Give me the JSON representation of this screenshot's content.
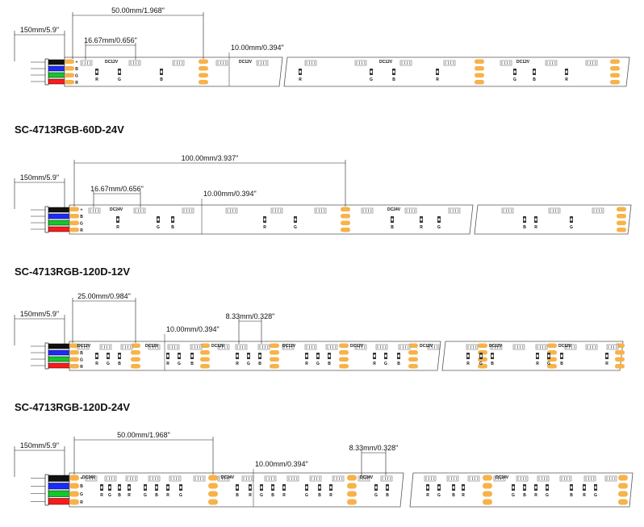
{
  "colors": {
    "pad": "#f7b24a",
    "wire_black": "#111111",
    "wire_blue": "#1a2bff",
    "wire_green": "#12c82a",
    "wire_red": "#ff1a1a",
    "led_frame": "#888888",
    "pcb_outline": "#555555"
  },
  "strips": [
    {
      "id": "strip1",
      "title": "",
      "dims": {
        "lead": "150mm/5.9\"",
        "cut_long": "50.00mm/1.968\"",
        "led_pitch": "16.67mm/0.656\"",
        "width": "10.00mm/0.394\""
      },
      "voltage_label": "DC12V",
      "pin_labels": [
        "+",
        "B",
        "G",
        "R"
      ],
      "component_labels": [
        "R",
        "G",
        "B"
      ]
    },
    {
      "id": "strip2",
      "title": "SC-4713RGB-60D-24V",
      "dims": {
        "lead": "150mm/5.9\"",
        "cut_long": "100.00mm/3.937\"",
        "led_pitch": "16.67mm/0.656\"",
        "width": "10.00mm/0.394\""
      },
      "voltage_label": "DC24V",
      "pin_labels": [
        "+",
        "B",
        "G",
        "R"
      ],
      "component_labels": [
        "R",
        "G",
        "B"
      ]
    },
    {
      "id": "strip3",
      "title": "SC-4713RGB-120D-12V",
      "dims": {
        "lead": "150mm/5.9\"",
        "cut_long": "25.00mm/0.984\"",
        "led_pitch": "8.33mm/0.328\"",
        "width": "10.00mm/0.394\""
      },
      "voltage_label": "DC12V",
      "pin_labels": [
        "+",
        "B",
        "G",
        "R"
      ],
      "component_labels": [
        "R",
        "G",
        "B"
      ]
    },
    {
      "id": "strip4",
      "title": "SC-4713RGB-120D-24V",
      "dims": {
        "lead": "150mm/5.9\"",
        "cut_long": "50.00mm/1.968\"",
        "led_pitch": "8.33mm/0.328\"",
        "width": "10.00mm/0.394\""
      },
      "voltage_label": "DC24V",
      "pin_labels": [
        "+",
        "B",
        "G",
        "R"
      ],
      "component_labels": [
        "R",
        "G",
        "B"
      ]
    }
  ]
}
